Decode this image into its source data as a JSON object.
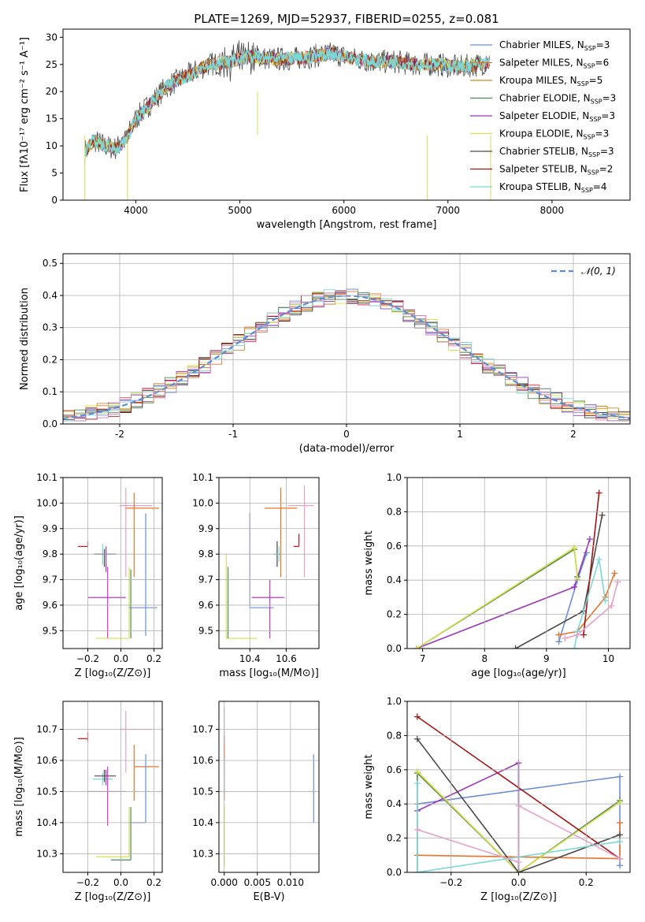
{
  "chart_data": [
    {
      "id": "spectrum",
      "type": "line",
      "title": "PLATE=1269, MJD=52937, FIBERID=0255, z=0.081",
      "xlabel": "wavelength [Angstrom, rest frame]",
      "ylabel": "Flux [fλ10⁻¹⁷ erg cm⁻² s⁻¹ A⁻¹]",
      "xlim": [
        3300,
        8750
      ],
      "ylim": [
        0,
        31.5
      ],
      "xticks": [
        4000,
        5000,
        6000,
        7000,
        8000
      ],
      "yticks": [
        0,
        5,
        10,
        15,
        20,
        25,
        30
      ],
      "grid": false,
      "legend_position": "right",
      "approx_profile": {
        "x": [
          3510,
          3600,
          3700,
          3800,
          3900,
          4000,
          4100,
          4200,
          4300,
          4500,
          4700,
          4900,
          5100,
          5300,
          5500,
          5700,
          5900,
          6100,
          6300,
          6500,
          6700,
          6900,
          7100,
          7300,
          7400
        ],
        "y": [
          9,
          11,
          10,
          9.5,
          11,
          15,
          17,
          19,
          21,
          23,
          25,
          25.5,
          26.5,
          26,
          26,
          26.5,
          27,
          26,
          25.5,
          25.5,
          25,
          25,
          24.5,
          25,
          25.5
        ]
      },
      "series": [
        {
          "name": "Chabrier MILES, N$_{SSP}$=3",
          "label": "Chabrier MILES, N",
          "sub": "SSP",
          "suffix": "=3",
          "color": "#6a8fd8"
        },
        {
          "name": "Salpeter MILES, N$_{SSP}$=6",
          "label": "Salpeter MILES, N",
          "sub": "SSP",
          "suffix": "=6",
          "color": "#e8742a"
        },
        {
          "name": "Kroupa MILES, N$_{SSP}$=5",
          "label": "Kroupa MILES, N",
          "sub": "SSP",
          "suffix": "=5",
          "color": "#d3861f"
        },
        {
          "name": "Chabrier ELODIE, N$_{SSP}$=3",
          "label": "Chabrier ELODIE, N",
          "sub": "SSP",
          "suffix": "=3",
          "color": "#4e8a4e"
        },
        {
          "name": "Salpeter ELODIE, N$_{SSP}$=3",
          "label": "Salpeter ELODIE, N",
          "sub": "SSP",
          "suffix": "=3",
          "color": "#9a38b5"
        },
        {
          "name": "Kroupa ELODIE, N$_{SSP}$=3",
          "label": "Kroupa ELODIE, N",
          "sub": "SSP",
          "suffix": "=3",
          "color": "#d9e04a"
        },
        {
          "name": "Chabrier STELIB, N$_{SSP}$=3",
          "label": "Chabrier STELIB, N",
          "sub": "SSP",
          "suffix": "=3",
          "color": "#4a4a4a"
        },
        {
          "name": "Salpeter STELIB, N$_{SSP}$=2",
          "label": "Salpeter STELIB, N",
          "sub": "SSP",
          "suffix": "=2",
          "color": "#a31515"
        },
        {
          "name": "Kroupa STELIB, N$_{SSP}$=4",
          "label": "Kroupa STELIB, N",
          "sub": "SSP",
          "suffix": "=4",
          "color": "#7ad8d8"
        }
      ]
    },
    {
      "id": "residuals",
      "type": "line",
      "title": "",
      "xlabel": "(data-model)/error",
      "ylabel": "Normed distribution",
      "xlim": [
        -2.5,
        2.5
      ],
      "ylim": [
        0,
        0.53
      ],
      "xticks": [
        -2,
        -1,
        0,
        1,
        2
      ],
      "yticks": [
        0.0,
        0.1,
        0.2,
        0.3,
        0.4,
        0.5
      ],
      "grid": true,
      "legend_position": "top-right",
      "legend_label": "𝒩(0, 1)",
      "reference_curve": "gaussian mean 0 sigma 1",
      "bin_width": 0.1,
      "histogram_colors": [
        "#6a8fd8",
        "#e8742a",
        "#d3861f",
        "#4e8a4e",
        "#9a38b5",
        "#d9e04a",
        "#4a4a4a",
        "#a31515",
        "#7ad8d8",
        "#e07ab8"
      ]
    },
    {
      "id": "age-vs-Z",
      "type": "scatter",
      "xlabel": "Z [log₁₀(Z/Z⊙)]",
      "ylabel": "age  [log₁₀(age/yr)]",
      "xlim": [
        -0.35,
        0.25
      ],
      "ylim": [
        9.43,
        10.1
      ],
      "xticks": [
        -0.2,
        0.0,
        0.2
      ],
      "xticklabels": [
        "−0.2",
        "0.0",
        "0.2"
      ],
      "yticks": [
        9.5,
        9.6,
        9.7,
        9.8,
        9.9,
        10.0,
        10.1
      ],
      "yticklabels": [
        "9.5",
        "9.6",
        "9.7",
        "9.8",
        "9.9",
        "10.0",
        "10.1"
      ],
      "grid": true,
      "points": [
        {
          "x": -0.2,
          "y": 9.83,
          "xerr": [
            0.06,
            0.0
          ],
          "yerr": [
            0.0,
            0.02
          ],
          "color": "#c8141e"
        },
        {
          "x": -0.11,
          "y": 9.8,
          "xerr": [
            0.06,
            0.06
          ],
          "yerr": [
            0.04,
            0.04
          ],
          "color": "#7ad8d8"
        },
        {
          "x": -0.1,
          "y": 9.8,
          "xerr": [
            0.06,
            0.07
          ],
          "yerr": [
            0.05,
            0.02
          ],
          "color": "#4a4a4a"
        },
        {
          "x": -0.09,
          "y": 9.8,
          "xerr": [
            0.03,
            0.0
          ],
          "yerr": [
            0.07,
            0.03
          ],
          "color": "#9a38b5"
        },
        {
          "x": -0.08,
          "y": 9.63,
          "xerr": [
            0.12,
            0.11
          ],
          "yerr": [
            0.16,
            0.12
          ],
          "color": "#c837c8"
        },
        {
          "x": 0.03,
          "y": 9.99,
          "xerr": [
            0.04,
            0.16
          ],
          "yerr": [
            0.28,
            0.07
          ],
          "color": "#e8a0c8"
        },
        {
          "x": 0.05,
          "y": 9.47,
          "xerr": [
            0.2,
            0.0
          ],
          "yerr": [
            0.0,
            0.28
          ],
          "color": "#d9e04a"
        },
        {
          "x": 0.06,
          "y": 9.47,
          "xerr": [
            0.0,
            0.0
          ],
          "yerr": [
            0.0,
            0.27
          ],
          "color": "#4e8a4e"
        },
        {
          "x": 0.08,
          "y": 9.98,
          "xerr": [
            0.05,
            0.15
          ],
          "yerr": [
            0.27,
            0.06
          ],
          "color": "#e8742a"
        },
        {
          "x": 0.15,
          "y": 9.59,
          "xerr": [
            0.1,
            0.07
          ],
          "yerr": [
            0.11,
            0.37
          ],
          "color": "#6a8fd8"
        }
      ]
    },
    {
      "id": "age-vs-mass",
      "type": "scatter",
      "xlabel": "mass [log₁₀(M/M⊙)]",
      "ylabel": "",
      "xlim": [
        10.23,
        10.78
      ],
      "ylim": [
        9.43,
        10.1
      ],
      "xticks": [
        10.4,
        10.6
      ],
      "xticklabels": [
        "10.4",
        "10.6"
      ],
      "yticks": [
        9.5,
        9.6,
        9.7,
        9.8,
        9.9,
        10.0,
        10.1
      ],
      "yticklabels": [
        "9.5",
        "9.6",
        "9.7",
        "9.8",
        "9.9",
        "10.0",
        "10.1"
      ],
      "grid": true,
      "points": [
        {
          "x": 10.27,
          "y": 9.47,
          "xerr": [
            0.0,
            0.17
          ],
          "yerr": [
            0.0,
            0.33
          ],
          "color": "#d9e04a"
        },
        {
          "x": 10.28,
          "y": 9.47,
          "xerr": [
            0.0,
            0.0
          ],
          "yerr": [
            0.0,
            0.28
          ],
          "color": "#4e8a4e"
        },
        {
          "x": 10.4,
          "y": 9.59,
          "xerr": [
            0.0,
            0.13
          ],
          "yerr": [
            0.0,
            0.37
          ],
          "color": "#6a8fd8"
        },
        {
          "x": 10.51,
          "y": 9.63,
          "xerr": [
            0.1,
            0.08
          ],
          "yerr": [
            0.16,
            0.07
          ],
          "color": "#c837c8"
        },
        {
          "x": 10.55,
          "y": 9.8,
          "xerr": [
            0.02,
            0.02
          ],
          "yerr": [
            0.05,
            0.05
          ],
          "color": "#4a4a4a"
        },
        {
          "x": 10.56,
          "y": 9.8,
          "xerr": [
            0.03,
            0.0
          ],
          "yerr": [
            0.03,
            0.03
          ],
          "color": "#7ad8d8"
        },
        {
          "x": 10.57,
          "y": 9.98,
          "xerr": [
            0.09,
            0.09
          ],
          "yerr": [
            0.27,
            0.08
          ],
          "color": "#e8742a"
        },
        {
          "x": 10.7,
          "y": 9.99,
          "xerr": [
            0.09,
            0.05
          ],
          "yerr": [
            0.28,
            0.08
          ],
          "color": "#e8a0c8"
        },
        {
          "x": 10.67,
          "y": 9.83,
          "xerr": [
            0.03,
            0.0
          ],
          "yerr": [
            0.0,
            0.05
          ],
          "color": "#c8141e"
        }
      ]
    },
    {
      "id": "weight-vs-age",
      "type": "line",
      "xlabel": "age  [log₁₀(age/yr)]",
      "ylabel": "mass weight",
      "xlim": [
        6.75,
        10.35
      ],
      "ylim": [
        0,
        1.0
      ],
      "xticks": [
        7,
        8,
        9,
        10
      ],
      "xticklabels": [
        "7",
        "8",
        "9",
        "10"
      ],
      "yticks": [
        0.0,
        0.2,
        0.4,
        0.6,
        0.8,
        1.0
      ],
      "yticklabels": [
        "0.0",
        "0.2",
        "0.4",
        "0.6",
        "0.8",
        "1.0"
      ],
      "grid": true,
      "series": [
        {
          "color": "#6a8fd8",
          "x": [
            9.2,
            9.5,
            9.65
          ],
          "y": [
            0.04,
            0.4,
            0.56
          ]
        },
        {
          "color": "#e8742a",
          "x": [
            9.2,
            9.5,
            9.95,
            10.1
          ],
          "y": [
            0.08,
            0.1,
            0.3,
            0.44
          ]
        },
        {
          "color": "#4e8a4e",
          "x": [
            6.9,
            9.45,
            9.5
          ],
          "y": [
            0.0,
            0.58,
            0.42
          ]
        },
        {
          "color": "#9a38b5",
          "x": [
            6.9,
            9.45,
            9.7
          ],
          "y": [
            0.0,
            0.36,
            0.64
          ]
        },
        {
          "color": "#d9e04a",
          "x": [
            6.9,
            9.45,
            9.5
          ],
          "y": [
            0.0,
            0.59,
            0.41
          ]
        },
        {
          "color": "#4a4a4a",
          "x": [
            8.5,
            9.6,
            9.9
          ],
          "y": [
            0.0,
            0.22,
            0.78
          ]
        },
        {
          "color": "#a31515",
          "x": [
            9.6,
            9.85
          ],
          "y": [
            0.08,
            0.91
          ]
        },
        {
          "color": "#7ad8d8",
          "x": [
            9.45,
            9.5,
            9.85,
            9.95
          ],
          "y": [
            0.0,
            0.1,
            0.52,
            0.28
          ]
        },
        {
          "color": "#e8a0c8",
          "x": [
            9.3,
            9.5,
            10.05,
            10.15
          ],
          "y": [
            0.06,
            0.08,
            0.25,
            0.39
          ]
        }
      ]
    },
    {
      "id": "mass-vs-Z",
      "type": "scatter",
      "xlabel": "Z [log₁₀(Z/Z⊙)]",
      "ylabel": "mass [log₁₀(M/M⊙)]",
      "xlim": [
        -0.35,
        0.25
      ],
      "ylim": [
        10.24,
        10.79
      ],
      "xticks": [
        -0.2,
        0.0,
        0.2
      ],
      "xticklabels": [
        "−0.2",
        "0.0",
        "0.2"
      ],
      "yticks": [
        10.3,
        10.4,
        10.5,
        10.6,
        10.7
      ],
      "yticklabels": [
        "10.3",
        "10.4",
        "10.5",
        "10.6",
        "10.7"
      ],
      "grid": true,
      "points": [
        {
          "x": -0.2,
          "y": 10.67,
          "xerr": [
            0.06,
            0.0
          ],
          "yerr": [
            0.01,
            0.02
          ],
          "color": "#c8141e"
        },
        {
          "x": -0.11,
          "y": 10.54,
          "xerr": [
            0.06,
            0.06
          ],
          "yerr": [
            0.02,
            0.02
          ],
          "color": "#7ad8d8"
        },
        {
          "x": -0.1,
          "y": 10.55,
          "xerr": [
            0.06,
            0.07
          ],
          "yerr": [
            0.02,
            0.02
          ],
          "color": "#4a4a4a"
        },
        {
          "x": -0.09,
          "y": 10.55,
          "xerr": [
            0.0,
            0.0
          ],
          "yerr": [
            0.03,
            0.02
          ],
          "color": "#9a38b5"
        },
        {
          "x": -0.08,
          "y": 10.5,
          "xerr": [
            0.12,
            0.11
          ],
          "yerr": [
            0.11,
            0.08
          ],
          "color": "#c837c8"
        },
        {
          "x": 0.03,
          "y": 10.7,
          "xerr": [
            0.04,
            0.16
          ],
          "yerr": [
            0.14,
            0.06
          ],
          "color": "#e8a0c8"
        },
        {
          "x": 0.05,
          "y": 10.29,
          "xerr": [
            0.2,
            0.0
          ],
          "yerr": [
            0.0,
            0.16
          ],
          "color": "#d9e04a"
        },
        {
          "x": 0.06,
          "y": 10.28,
          "xerr": [
            0.12,
            0.0
          ],
          "yerr": [
            0.0,
            0.17
          ],
          "color": "#4e8a4e"
        },
        {
          "x": 0.08,
          "y": 10.58,
          "xerr": [
            0.0,
            0.15
          ],
          "yerr": [
            0.11,
            0.07
          ],
          "color": "#e8742a"
        },
        {
          "x": 0.15,
          "y": 10.4,
          "xerr": [
            0.1,
            0.0
          ],
          "yerr": [
            0.0,
            0.22
          ],
          "color": "#6a8fd8"
        }
      ]
    },
    {
      "id": "mass-vs-EBV",
      "type": "scatter",
      "xlabel": "E(B-V)",
      "ylabel": "",
      "xlim": [
        -0.0008,
        0.0143
      ],
      "ylim": [
        10.24,
        10.79
      ],
      "xticks": [
        0.0,
        0.005,
        0.01
      ],
      "xticklabels": [
        "0.000",
        "0.005",
        "0.010"
      ],
      "yticks": [
        10.3,
        10.4,
        10.5,
        10.6,
        10.7
      ],
      "yticklabels": [
        "10.3",
        "10.4",
        "10.5",
        "10.6",
        "10.7"
      ],
      "grid": true,
      "points": [
        {
          "x": 0.0,
          "y": 10.64,
          "xerr": [
            0.0,
            0.0
          ],
          "yerr": [
            0.03,
            0.04
          ],
          "color": "#c8141e"
        },
        {
          "x": 0.0,
          "y": 10.7,
          "xerr": [
            0.0,
            0.0
          ],
          "yerr": [
            0.14,
            0.07
          ],
          "color": "#e8a0c8"
        },
        {
          "x": 0.0,
          "y": 10.58,
          "xerr": [
            0.0,
            0.0
          ],
          "yerr": [
            0.11,
            0.07
          ],
          "color": "#e8742a"
        },
        {
          "x": 0.0,
          "y": 10.29,
          "xerr": [
            0.0,
            0.0
          ],
          "yerr": [
            0.03,
            0.17
          ],
          "color": "#d9e04a"
        },
        {
          "x": 0.0,
          "y": 10.55,
          "xerr": [
            0.0,
            0.0
          ],
          "yerr": [
            0.05,
            0.05
          ],
          "color": "#7ad8d8"
        },
        {
          "x": 0.0135,
          "y": 10.4,
          "xerr": [
            0.0,
            0.0
          ],
          "yerr": [
            0.0,
            0.22
          ],
          "color": "#6a8fd8"
        }
      ]
    },
    {
      "id": "weight-vs-Z",
      "type": "line",
      "xlabel": "Z [log₁₀(Z/Z⊙)]",
      "ylabel": "mass weight",
      "xlim": [
        -0.33,
        0.33
      ],
      "ylim": [
        0,
        1.0
      ],
      "xticks": [
        -0.2,
        0.0,
        0.2
      ],
      "xticklabels": [
        "−0.2",
        "0.0",
        "0.2"
      ],
      "yticks": [
        0.0,
        0.2,
        0.4,
        0.6,
        0.8,
        1.0
      ],
      "yticklabels": [
        "0.0",
        "0.2",
        "0.4",
        "0.6",
        "0.8",
        "1.0"
      ],
      "grid": true,
      "series": [
        {
          "color": "#6a8fd8",
          "x": [
            -0.3,
            0.3,
            0.3
          ],
          "y": [
            0.4,
            0.56,
            0.04
          ]
        },
        {
          "color": "#e8742a",
          "x": [
            -0.3,
            0.3,
            0.3
          ],
          "y": [
            0.1,
            0.08,
            0.29
          ]
        },
        {
          "color": "#4e8a4e",
          "x": [
            -0.3,
            -0.3,
            0.0,
            0.3
          ],
          "y": [
            0.0,
            0.58,
            0.0,
            0.42
          ]
        },
        {
          "color": "#9a38b5",
          "x": [
            -0.3,
            0.0,
            0.0
          ],
          "y": [
            0.36,
            0.64,
            0.0
          ]
        },
        {
          "color": "#d9e04a",
          "x": [
            -0.3,
            0.0,
            0.3
          ],
          "y": [
            0.59,
            0.0,
            0.41
          ]
        },
        {
          "color": "#4a4a4a",
          "x": [
            -0.3,
            0.0,
            0.3
          ],
          "y": [
            0.78,
            0.0,
            0.22
          ]
        },
        {
          "color": "#a31515",
          "x": [
            -0.3,
            0.3
          ],
          "y": [
            0.91,
            0.08
          ]
        },
        {
          "color": "#7ad8d8",
          "x": [
            -0.3,
            -0.3,
            0.3
          ],
          "y": [
            0.52,
            0.0,
            0.18
          ]
        },
        {
          "color": "#e8a0c8",
          "x": [
            -0.3,
            0.0,
            0.0,
            0.3
          ],
          "y": [
            0.25,
            0.06,
            0.39,
            0.08
          ]
        }
      ]
    }
  ]
}
